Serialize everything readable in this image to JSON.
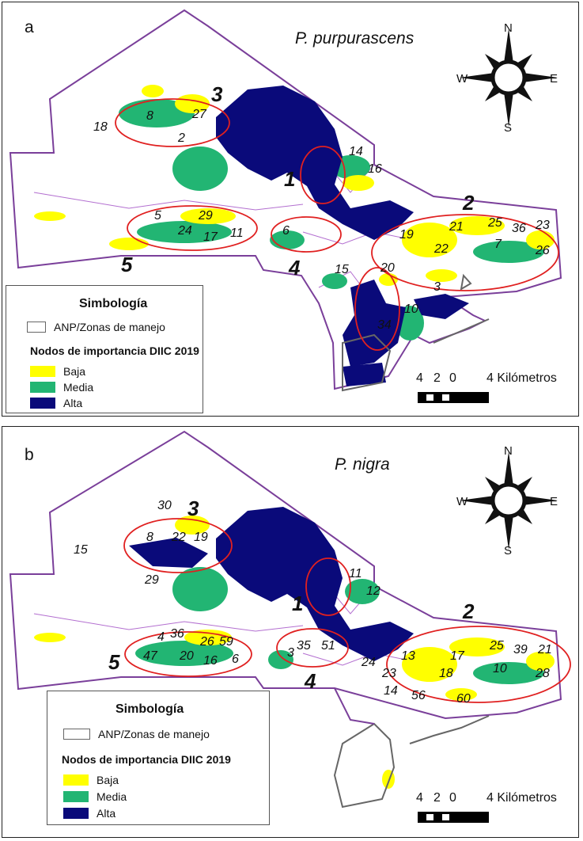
{
  "panels": [
    {
      "letter": "a",
      "species": "P. purpurascens",
      "compass": {
        "n": "N",
        "s": "S",
        "e": "E",
        "w": "W"
      },
      "legend": {
        "title": "Simbología",
        "anp_label": "ANP/Zonas de manejo",
        "subtitle": "Nodos de importancia DIIC 2019",
        "classes": [
          {
            "label": "Baja",
            "color": "#ffff00"
          },
          {
            "label": "Media",
            "color": "#22b573"
          },
          {
            "label": "Alta",
            "color": "#0a0a7a"
          }
        ]
      },
      "scale": {
        "ticks": [
          "4",
          "2",
          "0"
        ],
        "end_label": "4 Kilómetros"
      },
      "zones": [
        "1",
        "2",
        "3",
        "4",
        "5"
      ],
      "node_labels": [
        "18",
        "8",
        "27",
        "2",
        "14",
        "16",
        "5",
        "29",
        "24",
        "17",
        "11",
        "6",
        "15",
        "19",
        "21",
        "25",
        "36",
        "23",
        "22",
        "7",
        "26",
        "20",
        "3",
        "10",
        "34"
      ]
    },
    {
      "letter": "b",
      "species": "P. nigra",
      "compass": {
        "n": "N",
        "s": "S",
        "e": "E",
        "w": "W"
      },
      "legend": {
        "title": "Simbología",
        "anp_label": "ANP/Zonas de manejo",
        "subtitle": "Nodos de importancia DIIC 2019",
        "classes": [
          {
            "label": "Baja",
            "color": "#ffff00"
          },
          {
            "label": "Media",
            "color": "#22b573"
          },
          {
            "label": "Alta",
            "color": "#0a0a7a"
          }
        ]
      },
      "scale": {
        "ticks": [
          "4",
          "2",
          "0"
        ],
        "end_label": "4 Kilómetros"
      },
      "zones": [
        "1",
        "2",
        "3",
        "4",
        "5"
      ],
      "node_labels": [
        "30",
        "15",
        "8",
        "22",
        "19",
        "29",
        "11",
        "12",
        "4",
        "36",
        "26",
        "59",
        "47",
        "20",
        "16",
        "6",
        "3",
        "35",
        "51",
        "24",
        "13",
        "23",
        "14",
        "56",
        "17",
        "25",
        "39",
        "21",
        "18",
        "10",
        "28",
        "60"
      ]
    }
  ],
  "colors": {
    "boundary": "#7a3f9a",
    "zone_ellipse": "#e02020",
    "baja": "#ffff00",
    "media": "#22b573",
    "alta": "#0a0a7a",
    "anp_outline": "#666666"
  }
}
